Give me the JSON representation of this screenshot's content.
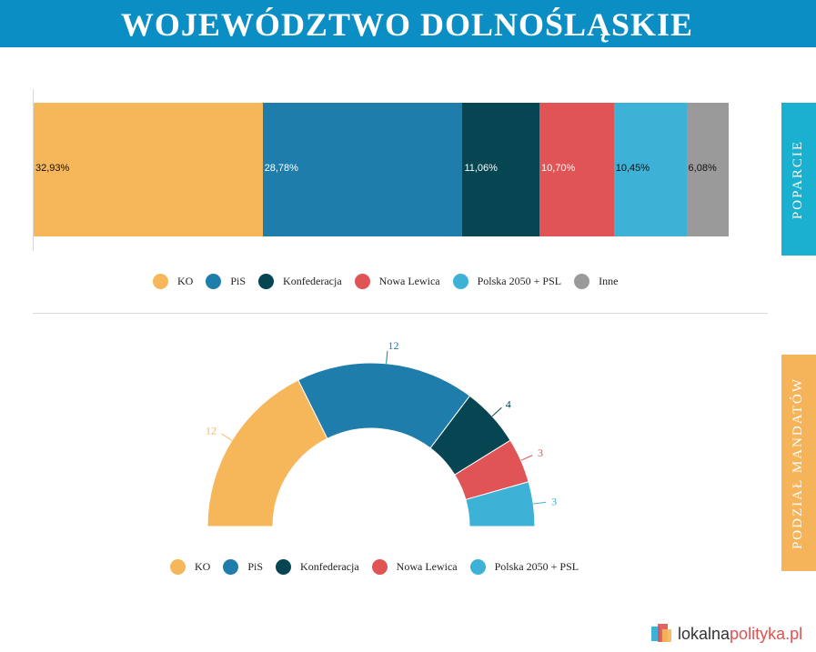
{
  "header": {
    "title": "WOJEWÓDZTWO DOLNOŚLĄSKIE"
  },
  "tabs": {
    "support": "POPARCIE",
    "seats": "PODZIAŁ MANDATÓW"
  },
  "colors": {
    "header": "#0b8ec4",
    "tab_support": "#1ab0d0",
    "tab_seats": "#f5b45a",
    "KO": "#f6b75a",
    "PiS": "#1f7dab",
    "Konfederacja": "#054652",
    "Nowa Lewica": "#e15455",
    "Polska 2050 + PSL": "#3db1d6",
    "Inne": "#9a9a9a"
  },
  "chart_data": [
    {
      "type": "bar",
      "orientation": "horizontal-stacked",
      "categories": [
        "KO",
        "PiS",
        "Konfederacja",
        "Nowa Lewica",
        "Polska 2050 + PSL",
        "Inne"
      ],
      "values": [
        32.93,
        28.78,
        11.06,
        10.7,
        10.45,
        6.08
      ],
      "value_labels": [
        "32,93%",
        "28,78%",
        "11,06%",
        "10,70%",
        "10,45%",
        "6,08%"
      ],
      "legend": [
        "KO",
        "PiS",
        "Konfederacja",
        "Nowa Lewica",
        "Polska 2050 + PSL",
        "Inne"
      ]
    },
    {
      "type": "pie",
      "variant": "half-donut",
      "categories": [
        "KO",
        "PiS",
        "Konfederacja",
        "Nowa Lewica",
        "Polska 2050 + PSL"
      ],
      "values": [
        12,
        12,
        4,
        3,
        3
      ],
      "legend": [
        "KO",
        "PiS",
        "Konfederacja",
        "Nowa Lewica",
        "Polska 2050 + PSL"
      ]
    }
  ],
  "logo": {
    "part1": "lokalna",
    "part2": "polityka.pl"
  }
}
